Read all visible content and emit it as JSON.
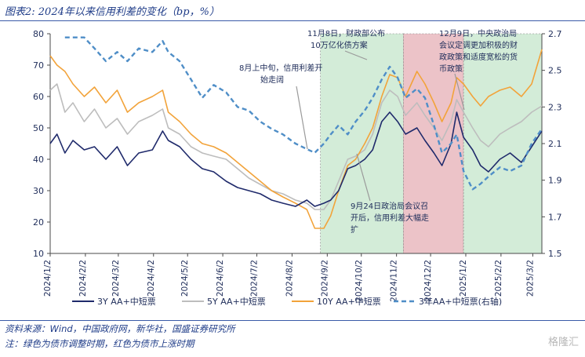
{
  "header": {
    "title": "图表2: 2024年以来信用利差的变化（bp，%）"
  },
  "footer": {
    "source": "资料来源：Wind，中国政府网，新华社，国盛证券研究所",
    "note": "注：绿色为债市调整时期，红色为债市上涨时期",
    "watermark": "格隆汇"
  },
  "chart_data": {
    "type": "line",
    "title": "",
    "xlabel": "",
    "ylabel": "",
    "x_range": [
      "2024-01-02",
      "2025-03-10"
    ],
    "x_tick_labels": [
      "2024/1/2",
      "2024/2/2",
      "2024/3/2",
      "2024/4/2",
      "2024/5/2",
      "2024/6/2",
      "2024/7/2",
      "2024/8/2",
      "2024/9/2",
      "2024/10/2",
      "2024/11/2",
      "2024/12/2",
      "2025/1/2",
      "2025/2/2",
      "2025/3/2"
    ],
    "ylim_left": [
      10,
      80
    ],
    "y_ticks_left": [
      "10",
      "20",
      "30",
      "40",
      "50",
      "60",
      "70",
      "80"
    ],
    "ylim_right": [
      1.5,
      2.7
    ],
    "y_ticks_right": [
      "1.5",
      "1.7",
      "1.9",
      "2.1",
      "2.3",
      "2.5",
      "2.7"
    ],
    "grid": false,
    "legend_position": "bottom",
    "shaded_periods": [
      {
        "from": "2024-08-27",
        "to": "2024-11-08",
        "color": "#d3ecd8",
        "meaning": "adjust"
      },
      {
        "from": "2024-11-08",
        "to": "2024-12-31",
        "color": "#ecc3c8",
        "meaning": "rally"
      },
      {
        "from": "2024-12-31",
        "to": "2025-03-10",
        "color": "#d3ecd8",
        "meaning": "adjust"
      }
    ],
    "series": [
      {
        "name": "3Y AA+中短票",
        "axis": "left",
        "color": "#1f2a6b",
        "style": "solid",
        "points": [
          [
            "2024-01-02",
            45
          ],
          [
            "2024-01-08",
            48
          ],
          [
            "2024-01-15",
            42
          ],
          [
            "2024-01-22",
            46
          ],
          [
            "2024-02-01",
            43
          ],
          [
            "2024-02-10",
            44
          ],
          [
            "2024-02-20",
            40
          ],
          [
            "2024-03-01",
            44
          ],
          [
            "2024-03-10",
            38
          ],
          [
            "2024-03-20",
            42
          ],
          [
            "2024-04-01",
            43
          ],
          [
            "2024-04-10",
            49
          ],
          [
            "2024-04-15",
            46
          ],
          [
            "2024-04-25",
            44
          ],
          [
            "2024-05-05",
            40
          ],
          [
            "2024-05-15",
            37
          ],
          [
            "2024-05-25",
            36
          ],
          [
            "2024-06-05",
            33
          ],
          [
            "2024-06-15",
            31
          ],
          [
            "2024-06-25",
            30
          ],
          [
            "2024-07-05",
            29
          ],
          [
            "2024-07-15",
            27
          ],
          [
            "2024-07-25",
            26
          ],
          [
            "2024-08-05",
            25
          ],
          [
            "2024-08-15",
            27
          ],
          [
            "2024-08-22",
            25
          ],
          [
            "2024-08-30",
            26
          ],
          [
            "2024-09-05",
            27
          ],
          [
            "2024-09-12",
            30
          ],
          [
            "2024-09-20",
            37
          ],
          [
            "2024-09-27",
            38
          ],
          [
            "2024-10-05",
            40
          ],
          [
            "2024-10-12",
            43
          ],
          [
            "2024-10-20",
            52
          ],
          [
            "2024-10-27",
            55
          ],
          [
            "2024-11-03",
            52
          ],
          [
            "2024-11-10",
            48
          ],
          [
            "2024-11-20",
            50
          ],
          [
            "2024-11-27",
            46
          ],
          [
            "2024-12-05",
            42
          ],
          [
            "2024-12-12",
            38
          ],
          [
            "2024-12-20",
            45
          ],
          [
            "2024-12-25",
            55
          ],
          [
            "2024-12-31",
            47
          ],
          [
            "2025-01-08",
            43
          ],
          [
            "2025-01-15",
            38
          ],
          [
            "2025-01-22",
            36
          ],
          [
            "2025-02-01",
            40
          ],
          [
            "2025-02-10",
            42
          ],
          [
            "2025-02-20",
            39
          ],
          [
            "2025-03-01",
            44
          ],
          [
            "2025-03-10",
            49
          ]
        ]
      },
      {
        "name": "5Y AA+中短票",
        "axis": "left",
        "color": "#bdbdbd",
        "style": "solid",
        "points": [
          [
            "2024-01-02",
            62
          ],
          [
            "2024-01-08",
            64
          ],
          [
            "2024-01-15",
            55
          ],
          [
            "2024-01-22",
            58
          ],
          [
            "2024-02-01",
            52
          ],
          [
            "2024-02-10",
            56
          ],
          [
            "2024-02-20",
            50
          ],
          [
            "2024-03-01",
            53
          ],
          [
            "2024-03-10",
            48
          ],
          [
            "2024-03-20",
            52
          ],
          [
            "2024-04-01",
            54
          ],
          [
            "2024-04-10",
            56
          ],
          [
            "2024-04-15",
            50
          ],
          [
            "2024-04-25",
            48
          ],
          [
            "2024-05-05",
            44
          ],
          [
            "2024-05-15",
            42
          ],
          [
            "2024-05-25",
            41
          ],
          [
            "2024-06-05",
            40
          ],
          [
            "2024-06-15",
            37
          ],
          [
            "2024-06-25",
            34
          ],
          [
            "2024-07-05",
            32
          ],
          [
            "2024-07-15",
            30
          ],
          [
            "2024-07-25",
            29
          ],
          [
            "2024-08-05",
            27
          ],
          [
            "2024-08-15",
            26
          ],
          [
            "2024-08-22",
            24
          ],
          [
            "2024-08-30",
            24
          ],
          [
            "2024-09-05",
            27
          ],
          [
            "2024-09-12",
            33
          ],
          [
            "2024-09-20",
            40
          ],
          [
            "2024-09-27",
            41
          ],
          [
            "2024-10-05",
            43
          ],
          [
            "2024-10-12",
            48
          ],
          [
            "2024-10-20",
            58
          ],
          [
            "2024-10-27",
            62
          ],
          [
            "2024-11-03",
            60
          ],
          [
            "2024-11-10",
            54
          ],
          [
            "2024-11-20",
            58
          ],
          [
            "2024-11-27",
            54
          ],
          [
            "2024-12-05",
            50
          ],
          [
            "2024-12-12",
            46
          ],
          [
            "2024-12-20",
            52
          ],
          [
            "2024-12-25",
            59
          ],
          [
            "2024-12-31",
            55
          ],
          [
            "2025-01-08",
            50
          ],
          [
            "2025-01-15",
            46
          ],
          [
            "2025-01-22",
            44
          ],
          [
            "2025-02-01",
            48
          ],
          [
            "2025-02-10",
            50
          ],
          [
            "2025-02-20",
            52
          ],
          [
            "2025-03-01",
            55
          ],
          [
            "2025-03-10",
            57
          ]
        ]
      },
      {
        "name": "10Y AA+中短票",
        "axis": "left",
        "color": "#f2a33a",
        "style": "solid",
        "points": [
          [
            "2024-01-02",
            73
          ],
          [
            "2024-01-08",
            70
          ],
          [
            "2024-01-15",
            68
          ],
          [
            "2024-01-22",
            64
          ],
          [
            "2024-02-01",
            60
          ],
          [
            "2024-02-10",
            63
          ],
          [
            "2024-02-20",
            58
          ],
          [
            "2024-03-01",
            62
          ],
          [
            "2024-03-10",
            55
          ],
          [
            "2024-03-20",
            58
          ],
          [
            "2024-04-01",
            60
          ],
          [
            "2024-04-10",
            62
          ],
          [
            "2024-04-15",
            55
          ],
          [
            "2024-04-25",
            52
          ],
          [
            "2024-05-05",
            48
          ],
          [
            "2024-05-15",
            45
          ],
          [
            "2024-05-25",
            44
          ],
          [
            "2024-06-05",
            42
          ],
          [
            "2024-06-15",
            39
          ],
          [
            "2024-06-25",
            36
          ],
          [
            "2024-07-05",
            33
          ],
          [
            "2024-07-15",
            30
          ],
          [
            "2024-07-25",
            28
          ],
          [
            "2024-08-05",
            26
          ],
          [
            "2024-08-15",
            24
          ],
          [
            "2024-08-22",
            18
          ],
          [
            "2024-08-30",
            18
          ],
          [
            "2024-09-05",
            22
          ],
          [
            "2024-09-12",
            30
          ],
          [
            "2024-09-20",
            38
          ],
          [
            "2024-09-27",
            40
          ],
          [
            "2024-10-05",
            45
          ],
          [
            "2024-10-12",
            50
          ],
          [
            "2024-10-20",
            60
          ],
          [
            "2024-10-27",
            67
          ],
          [
            "2024-11-03",
            66
          ],
          [
            "2024-11-10",
            60
          ],
          [
            "2024-11-20",
            68
          ],
          [
            "2024-11-27",
            64
          ],
          [
            "2024-12-05",
            58
          ],
          [
            "2024-12-12",
            52
          ],
          [
            "2024-12-20",
            58
          ],
          [
            "2024-12-25",
            66
          ],
          [
            "2024-12-31",
            64
          ],
          [
            "2025-01-08",
            60
          ],
          [
            "2025-01-15",
            57
          ],
          [
            "2025-01-22",
            60
          ],
          [
            "2025-02-01",
            62
          ],
          [
            "2025-02-10",
            63
          ],
          [
            "2025-02-20",
            60
          ],
          [
            "2025-03-01",
            64
          ],
          [
            "2025-03-10",
            75
          ]
        ]
      },
      {
        "name": "3年AA+中短票(右轴)",
        "axis": "right",
        "color": "#4f8ec7",
        "style": "dashed",
        "points": [
          [
            "2024-01-15",
            2.68
          ],
          [
            "2024-02-01",
            2.68
          ],
          [
            "2024-02-10",
            2.62
          ],
          [
            "2024-02-20",
            2.55
          ],
          [
            "2024-03-01",
            2.6
          ],
          [
            "2024-03-10",
            2.55
          ],
          [
            "2024-03-20",
            2.62
          ],
          [
            "2024-04-01",
            2.6
          ],
          [
            "2024-04-10",
            2.66
          ],
          [
            "2024-04-15",
            2.6
          ],
          [
            "2024-04-25",
            2.55
          ],
          [
            "2024-05-05",
            2.45
          ],
          [
            "2024-05-15",
            2.35
          ],
          [
            "2024-05-25",
            2.42
          ],
          [
            "2024-06-05",
            2.38
          ],
          [
            "2024-06-15",
            2.3
          ],
          [
            "2024-06-25",
            2.28
          ],
          [
            "2024-07-05",
            2.22
          ],
          [
            "2024-07-15",
            2.18
          ],
          [
            "2024-07-25",
            2.15
          ],
          [
            "2024-08-05",
            2.1
          ],
          [
            "2024-08-15",
            2.07
          ],
          [
            "2024-08-22",
            2.05
          ],
          [
            "2024-08-30",
            2.1
          ],
          [
            "2024-09-05",
            2.15
          ],
          [
            "2024-09-12",
            2.2
          ],
          [
            "2024-09-20",
            2.15
          ],
          [
            "2024-09-27",
            2.22
          ],
          [
            "2024-10-05",
            2.28
          ],
          [
            "2024-10-12",
            2.35
          ],
          [
            "2024-10-20",
            2.45
          ],
          [
            "2024-10-27",
            2.52
          ],
          [
            "2024-11-03",
            2.46
          ],
          [
            "2024-11-10",
            2.35
          ],
          [
            "2024-11-20",
            2.4
          ],
          [
            "2024-11-27",
            2.35
          ],
          [
            "2024-12-05",
            2.2
          ],
          [
            "2024-12-12",
            2.05
          ],
          [
            "2024-12-20",
            2.1
          ],
          [
            "2024-12-25",
            2.15
          ],
          [
            "2024-12-31",
            1.95
          ],
          [
            "2025-01-08",
            1.85
          ],
          [
            "2025-01-15",
            1.88
          ],
          [
            "2025-01-22",
            1.92
          ],
          [
            "2025-02-01",
            1.97
          ],
          [
            "2025-02-10",
            1.95
          ],
          [
            "2025-02-20",
            1.98
          ],
          [
            "2025-03-01",
            2.1
          ],
          [
            "2025-03-10",
            2.18
          ]
        ]
      }
    ],
    "annotations": [
      {
        "text": "8月上中旬，信用利差开始走阔",
        "line1": "8月上中旬，信用利差开",
        "line2": "始走阔"
      },
      {
        "text": "11月8日，财政部公布10万亿化债方案",
        "line1": "11月8日，财政部公布",
        "line2": "10万亿化债方案"
      },
      {
        "text": "12月9日，中央政治局会议定调更加积极的财政政策和适度宽松的货币政策",
        "line1": "12月9日，中央政治局",
        "line2": "会议定调更加积极的财",
        "line3": "政政策和适度宽松的货",
        "line4": "币政策"
      },
      {
        "text": "9月24日政治局会议召开后，信用利差大幅走扩",
        "line1": "9月24日政治局会议召",
        "line2": "开后，信用利差大幅走",
        "line3": "扩"
      }
    ]
  }
}
